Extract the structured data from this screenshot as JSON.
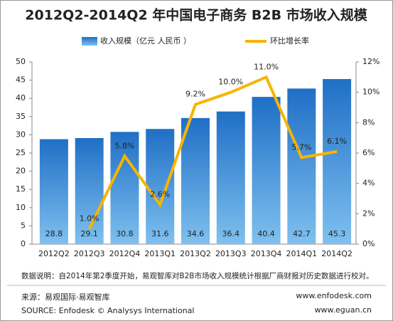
{
  "chart_data": {
    "type": "bar",
    "title": "2012Q2-2014Q2 年中国电子商务 B2B 市场收入规模",
    "categories": [
      "2012Q2",
      "2012Q3",
      "2012Q4",
      "2013Q1",
      "2013Q2",
      "2013Q3",
      "2013Q4",
      "2014Q1",
      "2014Q2"
    ],
    "series": [
      {
        "name": "收入规模（亿元 人民币 ）",
        "type": "bar",
        "color": "#2a7fd0",
        "values": [
          28.8,
          29.1,
          30.8,
          31.6,
          34.6,
          36.4,
          40.4,
          42.7,
          45.3
        ]
      },
      {
        "name": "环比增长率",
        "type": "line",
        "axis": "y2",
        "color": "#f7b500",
        "values": [
          null,
          1.0,
          5.8,
          2.6,
          9.2,
          10.0,
          11.0,
          5.7,
          6.1
        ],
        "value_labels": [
          null,
          "1.0%",
          "5.8%",
          "2.6%",
          "9.2%",
          "10.0%",
          "11.0%",
          "5.7%",
          "6.1%"
        ]
      }
    ],
    "ylim": [
      0,
      50
    ],
    "yticks": [
      0,
      5,
      10,
      15,
      20,
      25,
      30,
      35,
      40,
      45,
      50
    ],
    "y2lim": [
      0,
      12
    ],
    "y2ticks": [
      {
        "value": 0,
        "label": "0%"
      },
      {
        "value": 2,
        "label": "2%"
      },
      {
        "value": 4,
        "label": "4%"
      },
      {
        "value": 6,
        "label": "6%"
      },
      {
        "value": 8,
        "label": "8%"
      },
      {
        "value": 10,
        "label": "10%"
      },
      {
        "value": 12,
        "label": "12%"
      }
    ],
    "note": "数据说明：自2014年第2季度开始，易观智库对B2B市场收入规模统计根据厂商财报对历史数据进行校对。",
    "source": "来源：易观国际·易观智库",
    "source_en": "SOURCE: Enfodesk © Analysys International",
    "urls": [
      "www.enfodesk.com",
      "www.eguan.cn"
    ]
  }
}
